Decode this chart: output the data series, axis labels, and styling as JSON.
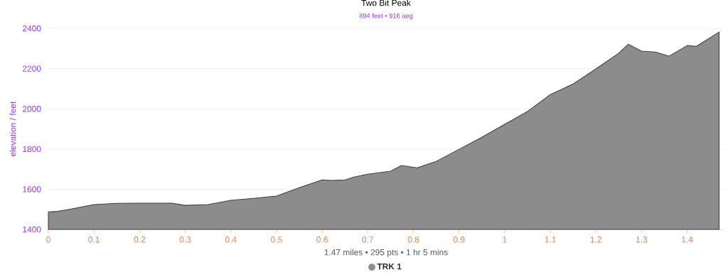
{
  "chart_data": {
    "type": "area",
    "title": "Two Bit Peak",
    "subtitle": "894 feet • 916 aeg",
    "xlabel": "1.47 miles • 295 pts • 1 hr 5 mins",
    "ylabel": "elevation / feet",
    "x": [
      0,
      0.02,
      0.05,
      0.08,
      0.1,
      0.15,
      0.2,
      0.25,
      0.27,
      0.3,
      0.35,
      0.4,
      0.45,
      0.5,
      0.55,
      0.6,
      0.62,
      0.65,
      0.67,
      0.7,
      0.75,
      0.774,
      0.808,
      0.85,
      0.9,
      0.95,
      1.0,
      1.05,
      1.1,
      1.15,
      1.2,
      1.25,
      1.271,
      1.3,
      1.33,
      1.36,
      1.4,
      1.42,
      1.47
    ],
    "series": [
      {
        "name": "TRK 1",
        "color": "#8c8c8c",
        "values": [
          1488,
          1490,
          1502,
          1515,
          1524,
          1530,
          1531,
          1531,
          1531,
          1520,
          1524,
          1545,
          1555,
          1566,
          1608,
          1647,
          1644,
          1647,
          1661,
          1675,
          1690,
          1718,
          1707,
          1739,
          1799,
          1859,
          1923,
          1987,
          2071,
          2124,
          2199,
          2277,
          2322,
          2287,
          2283,
          2262,
          2315,
          2311,
          2382
        ]
      }
    ],
    "xlim": [
      0,
      1.48
    ],
    "ylim": [
      1400,
      2400
    ],
    "xticks": [
      0,
      0.1,
      0.2,
      0.3,
      0.4,
      0.5,
      0.6,
      0.7,
      0.8,
      0.9,
      1,
      1.1,
      1.2,
      1.3,
      1.4
    ],
    "yticks": [
      1400,
      1600,
      1800,
      2000,
      2200,
      2400
    ],
    "grid": "y",
    "legend": "bottom",
    "marker": "none"
  }
}
